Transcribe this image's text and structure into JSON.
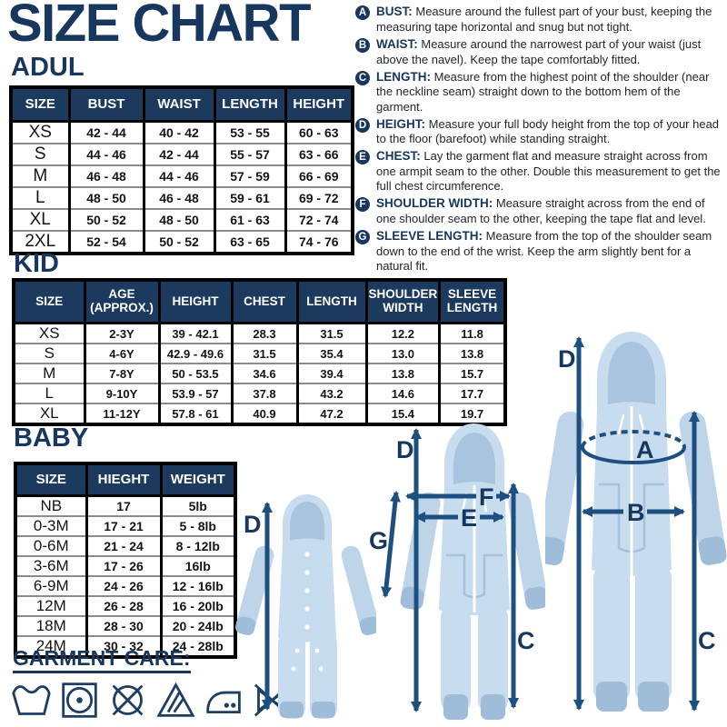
{
  "page": {
    "title": "SIZE CHART"
  },
  "adult": {
    "heading": "ADUL",
    "columns": [
      "SIZE",
      "BUST",
      "WAIST",
      "LENGTH",
      "HEIGHT"
    ],
    "rows": [
      [
        "XS",
        "42 - 44",
        "40 - 42",
        "53 - 55",
        "60 - 63"
      ],
      [
        "S",
        "44 - 46",
        "42 - 44",
        "55 - 57",
        "63 - 66"
      ],
      [
        "M",
        "46 - 48",
        "44 - 46",
        "57 - 59",
        "66 - 69"
      ],
      [
        "L",
        "48 - 50",
        "46 - 48",
        "59 - 61",
        "69 - 72"
      ],
      [
        "XL",
        "50 - 52",
        "48 - 50",
        "61 - 63",
        "72 - 74"
      ],
      [
        "2XL",
        "52 - 54",
        "50 - 52",
        "63 - 65",
        "74 - 76"
      ]
    ]
  },
  "kid": {
    "heading": "KID",
    "columns": [
      "SIZE",
      "AGE (APPROX.)",
      "HEIGHT",
      "CHEST",
      "LENGTH",
      "SHOULDER WIDTH",
      "SLEEVE LENGTH"
    ],
    "rows": [
      [
        "XS",
        "2-3Y",
        "39 - 42.1",
        "28.3",
        "31.5",
        "12.2",
        "11.8"
      ],
      [
        "S",
        "4-6Y",
        "42.9 - 49.6",
        "31.5",
        "35.4",
        "13.0",
        "13.8"
      ],
      [
        "M",
        "7-8Y",
        "50 - 53.5",
        "34.6",
        "39.4",
        "13.8",
        "15.7"
      ],
      [
        "L",
        "9-10Y",
        "53.9 - 57",
        "37.8",
        "43.2",
        "14.6",
        "17.7"
      ],
      [
        "XL",
        "11-12Y",
        "57.8 - 61",
        "40.9",
        "47.2",
        "15.4",
        "19.7"
      ]
    ]
  },
  "baby": {
    "heading": "BABY",
    "columns": [
      "SIZE",
      "HIEGHT",
      "WEIGHT"
    ],
    "rows": [
      [
        "NB",
        "17",
        "5lb"
      ],
      [
        "0-3M",
        "17 - 21",
        "5 - 8lb"
      ],
      [
        "0-6M",
        "21 - 24",
        "8 - 12lb"
      ],
      [
        "3-6M",
        "17 - 26",
        "16lb"
      ],
      [
        "6-9M",
        "24 - 26",
        "12 - 16lb"
      ],
      [
        "12M",
        "26 - 28",
        "16 - 20lb"
      ],
      [
        "18M",
        "28 - 30",
        "20 - 24lb"
      ],
      [
        "24M",
        "30 - 32",
        "24 - 28lb"
      ]
    ]
  },
  "guide": {
    "items": [
      {
        "letter": "A",
        "label": "BUST:",
        "text": "Measure around the fullest part of your bust, keeping the measuring tape horizontal and snug but not tight."
      },
      {
        "letter": "B",
        "label": "WAIST:",
        "text": "Measure around the narrowest part of your waist (just above the navel). Keep the tape comfortably fitted."
      },
      {
        "letter": "C",
        "label": "LENGTH:",
        "text": "Measure from the highest point of the shoulder (near the neckline seam) straight down to the bottom hem of the garment."
      },
      {
        "letter": "D",
        "label": "HEIGHT:",
        "text": "Measure your full body height from the top of your head to the floor (barefoot) while standing straight."
      },
      {
        "letter": "E",
        "label": "CHEST:",
        "text": "Lay the garment flat and measure straight across from one armpit seam to the other. Double this measurement to get the full chest circumference."
      },
      {
        "letter": "F",
        "label": "SHOULDER WIDTH:",
        "text": "Measure straight across from the end of one shoulder seam to the other, keeping the tape flat and level."
      },
      {
        "letter": "G",
        "label": "SLEEVE LENGTH:",
        "text": "Measure from the top of the shoulder seam down to the end of the wrist. Keep the arm slightly bent for a natural fit."
      }
    ]
  },
  "garment_care": {
    "heading": "GARMENT CARE:",
    "icons": [
      "wash",
      "tumble-dry",
      "do-not-dry-clean",
      "non-chlorine-bleach",
      "iron",
      "do-not-wring"
    ]
  },
  "figures": {
    "baby": {
      "d": "D"
    },
    "kid": {
      "d": "D",
      "g": "G",
      "f": "F",
      "e": "E",
      "c": "C"
    },
    "adult": {
      "d": "D",
      "a": "A",
      "b": "B",
      "c": "C"
    }
  },
  "colors": {
    "navy": "#17375e",
    "arrow_blue": "#1d4f80",
    "table_header_bg": "#1b3a5e",
    "onesie_blue": "#c7dcee"
  }
}
